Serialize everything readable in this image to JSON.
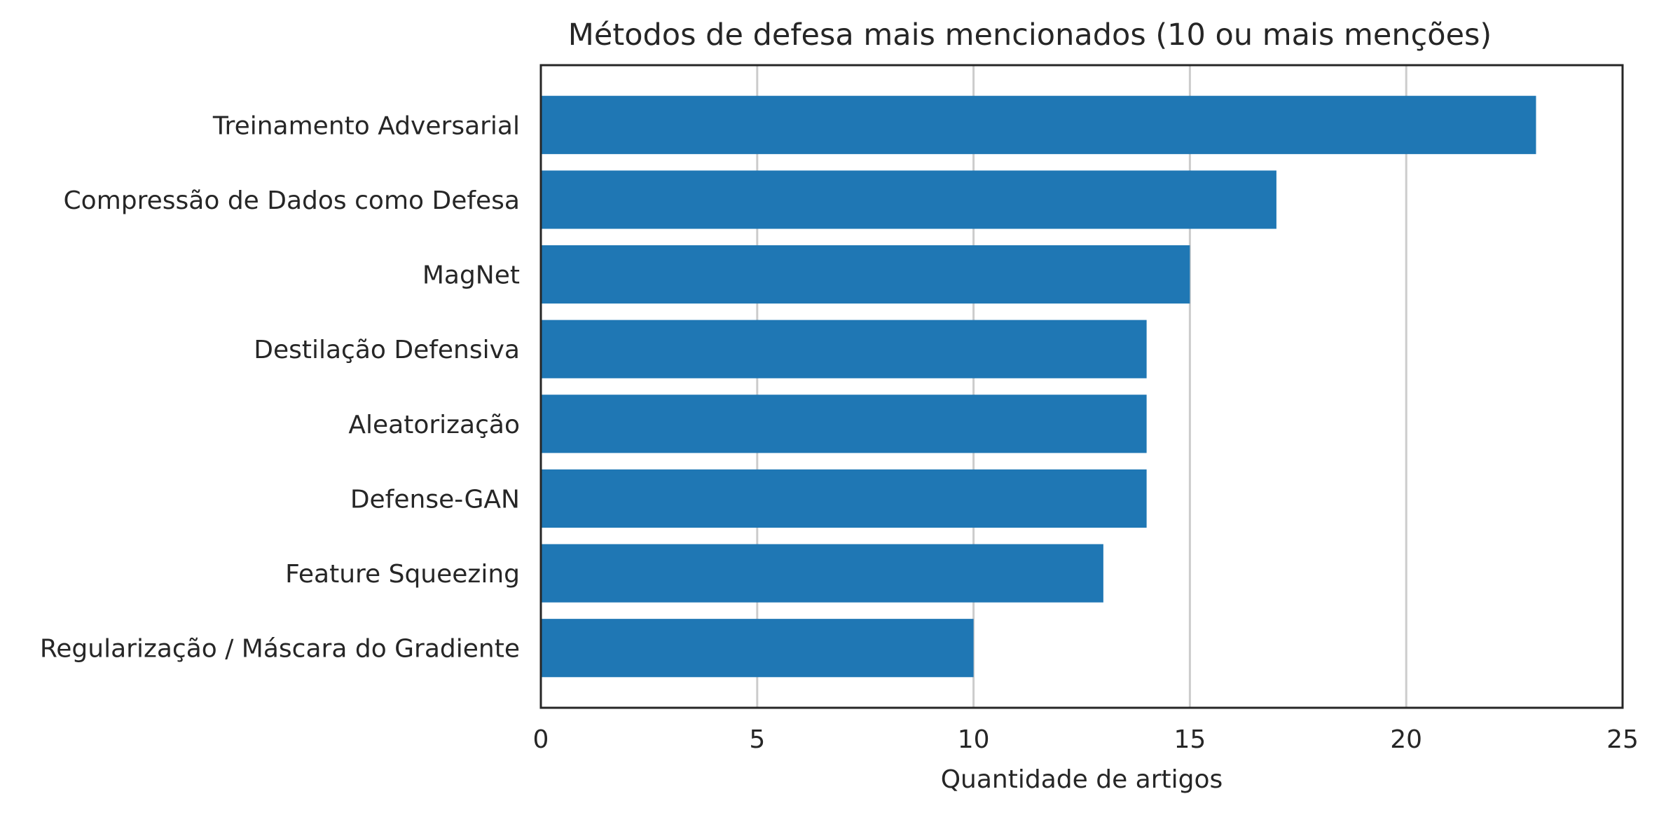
{
  "chart_data": {
    "type": "bar",
    "orientation": "horizontal",
    "title": "Métodos de defesa mais mencionados (10 ou mais menções)",
    "xlabel": "Quantidade de artigos",
    "ylabel": "",
    "categories": [
      "Treinamento Adversarial",
      "Compressão de Dados como Defesa",
      "MagNet",
      "Destilação Defensiva",
      "Aleatorização",
      "Defense-GAN",
      "Feature Squeezing",
      "Regularização / Máscara do Gradiente"
    ],
    "values": [
      23,
      17,
      15,
      14,
      14,
      14,
      13,
      10
    ],
    "xlim": [
      0,
      25
    ],
    "xticks": [
      0,
      5,
      10,
      15,
      20,
      25
    ],
    "grid": "vertical",
    "legend": "none",
    "colors": {
      "bar": "#1f77b4",
      "grid": "#cccccc",
      "frame": "#262626",
      "text": "#262626"
    }
  }
}
